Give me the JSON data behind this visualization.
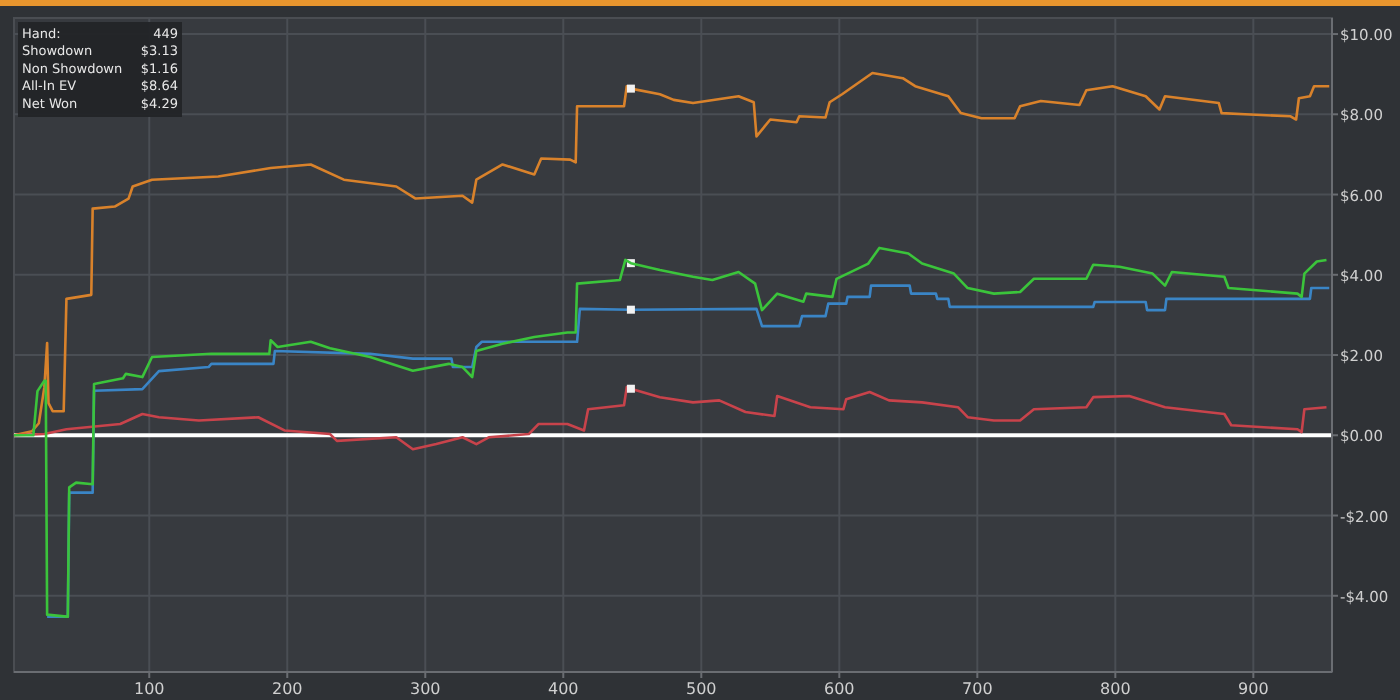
{
  "chart_data": {
    "type": "line",
    "xlim": [
      2,
      957
    ],
    "xticks": [
      100,
      200,
      300,
      400,
      500,
      600,
      700,
      800,
      900
    ],
    "ylim": [
      -5.9,
      10.4
    ],
    "yticks": [
      {
        "value": -4,
        "label": "-$4.00"
      },
      {
        "value": -2,
        "label": "-$2.00"
      },
      {
        "value": 0,
        "label": "$0.00"
      },
      {
        "value": 2,
        "label": "$2.00"
      },
      {
        "value": 4,
        "label": "$4.00"
      },
      {
        "value": 6,
        "label": "$6.00"
      },
      {
        "value": 8,
        "label": "$8.00"
      },
      {
        "value": 10,
        "label": "$10.00"
      }
    ],
    "grid": true,
    "line_style": "solid",
    "marker": "none",
    "series": [
      {
        "color": "#d9822b",
        "x": [
          2,
          15,
          20,
          24,
          26,
          27,
          30,
          38,
          40,
          58,
          59,
          75,
          85,
          88,
          102,
          150,
          188,
          217,
          241,
          279,
          293,
          327,
          334,
          337,
          356,
          379,
          384,
          405,
          409,
          410,
          444,
          446,
          449,
          470,
          480,
          494,
          527,
          538,
          540,
          550,
          569,
          571,
          590,
          593,
          602,
          617,
          624,
          646,
          655,
          679,
          688,
          703,
          727,
          731,
          746,
          774,
          779,
          798,
          822,
          832,
          836,
          875,
          877,
          894,
          927,
          931,
          933,
          941,
          944,
          955
        ],
        "values": [
          0,
          0.1,
          0.3,
          1.2,
          2.3,
          0.8,
          0.6,
          0.6,
          3.4,
          3.5,
          5.65,
          5.7,
          5.9,
          6.2,
          6.37,
          6.45,
          6.66,
          6.75,
          6.37,
          6.2,
          5.9,
          5.97,
          5.8,
          6.37,
          6.75,
          6.5,
          6.9,
          6.87,
          6.8,
          8.2,
          8.2,
          8.7,
          8.64,
          8.5,
          8.36,
          8.28,
          8.45,
          8.3,
          7.45,
          7.87,
          7.8,
          7.95,
          7.92,
          8.3,
          8.5,
          8.86,
          9.03,
          8.9,
          8.7,
          8.45,
          8.03,
          7.9,
          7.9,
          8.2,
          8.33,
          8.23,
          8.6,
          8.7,
          8.45,
          8.12,
          8.45,
          8.28,
          8.03,
          8.0,
          7.95,
          7.87,
          8.4,
          8.45,
          8.7,
          8.7
        ]
      },
      {
        "color": "#3bc43b",
        "x": [
          2,
          16,
          19,
          24,
          25,
          26,
          40,
          41,
          42,
          47,
          59,
          60,
          81,
          83,
          95,
          102,
          145,
          187,
          188,
          193,
          217,
          231,
          260,
          291,
          317,
          327,
          334,
          337,
          356,
          379,
          403,
          409,
          410,
          441,
          445,
          449,
          470,
          494,
          508,
          527,
          539,
          544,
          555,
          574,
          576,
          595,
          598,
          621,
          629,
          650,
          660,
          683,
          693,
          712,
          731,
          741,
          779,
          784,
          803,
          827,
          836,
          841,
          879,
          882,
          932,
          935,
          937,
          946,
          953
        ],
        "values": [
          0,
          0,
          1.1,
          1.36,
          1.36,
          -4.47,
          -4.52,
          -4.52,
          -1.3,
          -1.18,
          -1.22,
          1.28,
          1.42,
          1.53,
          1.45,
          1.95,
          2.03,
          2.03,
          2.37,
          2.2,
          2.33,
          2.17,
          1.95,
          1.61,
          1.78,
          1.7,
          1.45,
          2.1,
          2.28,
          2.45,
          2.56,
          2.56,
          3.78,
          3.87,
          4.37,
          4.29,
          4.12,
          3.95,
          3.87,
          4.07,
          3.78,
          3.12,
          3.53,
          3.33,
          3.53,
          3.45,
          3.9,
          4.28,
          4.67,
          4.53,
          4.28,
          4.03,
          3.67,
          3.53,
          3.57,
          3.9,
          3.9,
          4.25,
          4.2,
          4.03,
          3.73,
          4.07,
          3.95,
          3.67,
          3.53,
          3.45,
          4.03,
          4.33,
          4.37
        ]
      },
      {
        "color": "#3a85c6",
        "x": [
          26,
          40,
          41,
          42,
          59,
          60,
          95,
          102,
          107,
          143,
          145,
          190,
          191,
          260,
          291,
          319,
          320,
          334,
          337,
          341,
          410,
          412,
          449,
          540,
          544,
          571,
          573,
          590,
          592,
          605,
          606,
          622,
          623,
          651,
          652,
          670,
          671,
          679,
          680,
          784,
          785,
          822,
          823,
          836,
          837,
          941,
          942,
          955
        ],
        "values": [
          -4.52,
          -4.52,
          -4.52,
          -1.43,
          -1.43,
          1.11,
          1.15,
          1.41,
          1.6,
          1.7,
          1.78,
          1.78,
          2.1,
          2.03,
          1.91,
          1.91,
          1.7,
          1.7,
          2.2,
          2.33,
          2.33,
          3.15,
          3.13,
          3.15,
          2.72,
          2.72,
          2.97,
          2.97,
          3.28,
          3.28,
          3.45,
          3.45,
          3.73,
          3.73,
          3.53,
          3.53,
          3.4,
          3.4,
          3.2,
          3.2,
          3.32,
          3.32,
          3.12,
          3.12,
          3.4,
          3.4,
          3.67,
          3.67
        ]
      },
      {
        "color": "#c8434b",
        "x": [
          2,
          24,
          40,
          79,
          95,
          107,
          136,
          179,
          198,
          231,
          236,
          279,
          291,
          308,
          327,
          337,
          346,
          375,
          382,
          403,
          415,
          418,
          444,
          446,
          449,
          470,
          494,
          513,
          532,
          553,
          555,
          579,
          603,
          605,
          622,
          636,
          660,
          686,
          693,
          712,
          731,
          741,
          779,
          784,
          810,
          836,
          879,
          884,
          932,
          935,
          937,
          953
        ],
        "values": [
          0,
          0.03,
          0.15,
          0.28,
          0.53,
          0.45,
          0.37,
          0.45,
          0.12,
          0.03,
          -0.14,
          -0.05,
          -0.35,
          -0.22,
          -0.05,
          -0.22,
          -0.05,
          0.03,
          0.28,
          0.28,
          0.12,
          0.65,
          0.75,
          1.2,
          1.16,
          0.95,
          0.82,
          0.87,
          0.58,
          0.48,
          0.98,
          0.7,
          0.65,
          0.9,
          1.08,
          0.87,
          0.82,
          0.7,
          0.45,
          0.37,
          0.37,
          0.65,
          0.7,
          0.95,
          0.98,
          0.7,
          0.53,
          0.25,
          0.15,
          0.08,
          0.65,
          0.7
        ]
      },
      {
        "type": "scatter",
        "marker": "square",
        "color": "#f2f2f2",
        "x": [
          449,
          449,
          449,
          449
        ],
        "values": [
          8.64,
          4.29,
          3.13,
          1.16
        ]
      }
    ],
    "ref_lines": [
      {
        "axis": "y",
        "value": 0,
        "color": "#ffffff"
      }
    ],
    "annotations": [
      "Hand:",
      "449",
      "Showdown",
      "$3.13",
      "Non Showdown",
      "$1.16",
      "All-In EV",
      "$8.64",
      "Net Won",
      "$4.29"
    ]
  }
}
